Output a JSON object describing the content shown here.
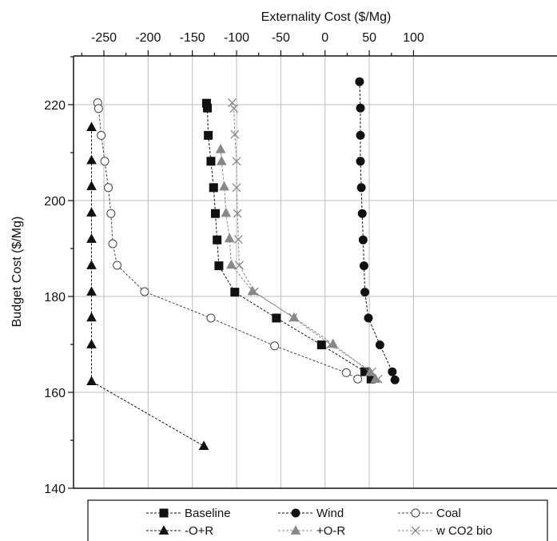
{
  "chart_data": {
    "type": "line",
    "xlabel": "Externality Cost ($/Mg)",
    "ylabel": "Budget Cost ($/Mg)",
    "xlim": [
      -280,
      110
    ],
    "ylim": [
      140,
      230
    ],
    "x_axis_position": "top",
    "x_ticks": [
      -250,
      -200,
      -150,
      -100,
      -50,
      0,
      50,
      100
    ],
    "y_ticks": [
      140,
      160,
      180,
      200,
      220
    ],
    "grid": true,
    "legend_position": "bottom",
    "legend_columns": 3,
    "series": [
      {
        "name": "Baseline",
        "marker": "square",
        "color": "#111111",
        "fill": "#111111",
        "points": [
          [
            -134,
            220.3
          ],
          [
            -133,
            219.3
          ],
          [
            -132,
            213.6
          ],
          [
            -129,
            208.2
          ],
          [
            -126,
            202.7
          ],
          [
            -124,
            197.3
          ],
          [
            -122,
            191.8
          ],
          [
            -120,
            186.4
          ],
          [
            -102,
            180.9
          ],
          [
            -55,
            175.5
          ],
          [
            -4,
            169.9
          ],
          [
            45,
            164.3
          ],
          [
            52,
            162.8
          ]
        ]
      },
      {
        "name": "Wind",
        "marker": "circle",
        "color": "#111111",
        "fill": "#111111",
        "points": [
          [
            39,
            224.8
          ],
          [
            40,
            219.3
          ],
          [
            40,
            213.6
          ],
          [
            40,
            208.2
          ],
          [
            41,
            202.7
          ],
          [
            42,
            197.3
          ],
          [
            43,
            191.8
          ],
          [
            44,
            186.4
          ],
          [
            45,
            180.9
          ],
          [
            49,
            175.5
          ],
          [
            62,
            169.9
          ],
          [
            76,
            164.3
          ],
          [
            79,
            162.6
          ]
        ]
      },
      {
        "name": "Coal",
        "marker": "open-circle",
        "color": "#444444",
        "fill": "#ffffff",
        "points": [
          [
            -257,
            220.4
          ],
          [
            -256,
            219.2
          ],
          [
            -253,
            213.6
          ],
          [
            -249,
            208.2
          ],
          [
            -245,
            202.7
          ],
          [
            -242,
            197.3
          ],
          [
            -240,
            191.0
          ],
          [
            -235,
            186.5
          ],
          [
            -204,
            181.0
          ],
          [
            -129,
            175.5
          ],
          [
            -57,
            169.7
          ],
          [
            24,
            164.1
          ],
          [
            37,
            162.8
          ]
        ]
      },
      {
        "name": "-O+R",
        "marker": "triangle",
        "color": "#111111",
        "fill": "#111111",
        "points": [
          [
            -264,
            215.3
          ],
          [
            -264,
            208.4
          ],
          [
            -264,
            203.0
          ],
          [
            -264,
            197.5
          ],
          [
            -264,
            192.0
          ],
          [
            -264,
            186.5
          ],
          [
            -264,
            181.0
          ],
          [
            -264,
            175.6
          ],
          [
            -264,
            170.0
          ],
          [
            -264,
            162.3
          ],
          [
            -137,
            148.8
          ]
        ]
      },
      {
        "name": "+O-R",
        "marker": "triangle",
        "color": "#888888",
        "fill": "#888888",
        "points": [
          [
            -118,
            210.7
          ],
          [
            -117,
            208.2
          ],
          [
            -114,
            202.9
          ],
          [
            -112,
            197.4
          ],
          [
            -108,
            192.1
          ],
          [
            -106,
            186.6
          ],
          [
            -82,
            181.1
          ],
          [
            -35,
            175.6
          ],
          [
            9,
            170.1
          ],
          [
            51,
            164.2
          ],
          [
            57,
            162.8
          ]
        ]
      },
      {
        "name": "w CO2 bio",
        "marker": "cross",
        "color": "#888888",
        "fill": "none",
        "points": [
          [
            -105,
            220.4
          ],
          [
            -103,
            219.2
          ],
          [
            -102,
            213.8
          ],
          [
            -100,
            208.2
          ],
          [
            -100,
            202.7
          ],
          [
            -99,
            197.3
          ],
          [
            -98,
            191.9
          ],
          [
            -97,
            186.5
          ],
          [
            -80,
            181.0
          ],
          [
            -36,
            175.6
          ],
          [
            6,
            170.0
          ],
          [
            53,
            164.3
          ],
          [
            60,
            162.8
          ]
        ]
      }
    ]
  }
}
